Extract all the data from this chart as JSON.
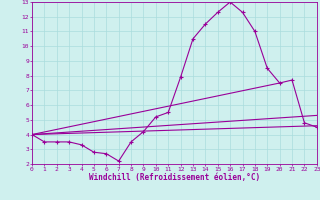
{
  "xlabel": "Windchill (Refroidissement éolien,°C)",
  "background_color": "#cff0ee",
  "grid_color": "#aadddd",
  "line_color": "#990099",
  "xlim": [
    0,
    23
  ],
  "ylim": [
    2,
    13
  ],
  "xticks": [
    0,
    1,
    2,
    3,
    4,
    5,
    6,
    7,
    8,
    9,
    10,
    11,
    12,
    13,
    14,
    15,
    16,
    17,
    18,
    19,
    20,
    21,
    22,
    23
  ],
  "yticks": [
    2,
    3,
    4,
    5,
    6,
    7,
    8,
    9,
    10,
    11,
    12,
    13
  ],
  "line1_x": [
    0,
    1,
    2,
    3,
    4,
    5,
    6,
    7,
    8,
    9,
    10,
    11,
    12,
    13,
    14,
    15,
    16,
    17,
    18,
    19,
    20,
    21,
    22,
    23
  ],
  "line1_y": [
    4.0,
    3.5,
    3.5,
    3.5,
    3.3,
    2.8,
    2.7,
    2.2,
    3.5,
    4.2,
    5.2,
    5.5,
    7.9,
    10.5,
    11.5,
    12.3,
    13.0,
    12.3,
    11.0,
    8.5,
    7.5,
    7.7,
    4.8,
    4.5
  ],
  "line2_x": [
    0,
    23
  ],
  "line2_y": [
    4.0,
    4.6
  ],
  "line3_x": [
    0,
    23
  ],
  "line3_y": [
    4.0,
    5.3
  ],
  "line4_x": [
    0,
    20
  ],
  "line4_y": [
    4.0,
    7.5
  ]
}
